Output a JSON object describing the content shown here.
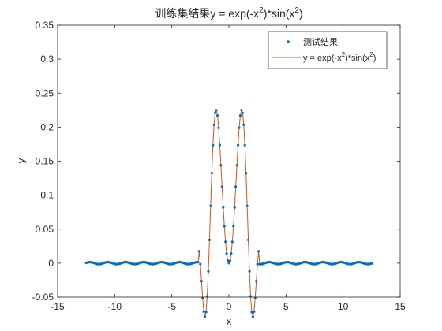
{
  "chart_data": {
    "type": "line",
    "title_prefix": "训练集结果",
    "title_formula": "y = exp(-x",
    "title_sup": "2",
    "title_mid": ")*sin(x",
    "title_end": ")",
    "xlabel": "x",
    "ylabel": "y",
    "xlim": [
      -15,
      15
    ],
    "ylim": [
      -0.05,
      0.35
    ],
    "xticks": [
      -15,
      -10,
      -5,
      0,
      5,
      10,
      15
    ],
    "yticks": [
      -0.05,
      0,
      0.05,
      0.1,
      0.15,
      0.2,
      0.25,
      0.3,
      0.35
    ],
    "xtick_labels": [
      "-15",
      "-10",
      "-5",
      "0",
      "5",
      "10",
      "15"
    ],
    "ytick_labels": [
      "-0.05",
      "0",
      "0.05",
      "0.1",
      "0.15",
      "0.2",
      "0.25",
      "0.3",
      "0.35"
    ],
    "grid": false,
    "legend_position": "top-right",
    "x_range": [
      -12.5,
      12.5
    ],
    "num_points": 251,
    "series": [
      {
        "name": "测试结果",
        "style": "markers",
        "color": "#0072BD"
      },
      {
        "name": "y = exp(-x2)*sin(x2)",
        "style": "line",
        "color": "#D95319"
      }
    ],
    "legend": {
      "marker_label": "测试结果",
      "line_label_a": "y = exp(-x",
      "line_label_sup1": "2",
      "line_label_b": ")*sin(x",
      "line_label_sup2": "2",
      "line_label_c": ")"
    }
  }
}
